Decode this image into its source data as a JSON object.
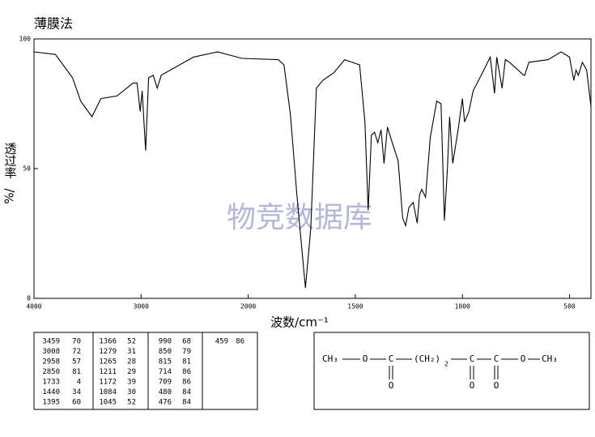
{
  "chart_data": {
    "type": "line",
    "title": "薄膜法",
    "y_label": "透过率",
    "y_label_unit": "%/",
    "x_label": "波数/cm⁻¹",
    "watermark": "物竞数据库",
    "xlim": [
      4000,
      400
    ],
    "x_scale_break": 2000,
    "xticks": [
      4000,
      3000,
      2000,
      1500,
      1000,
      500
    ],
    "ylim": [
      0,
      100
    ],
    "yticks": [
      0,
      50,
      100
    ],
    "color": "#000000",
    "x": [
      4000,
      3800,
      3640,
      3564,
      3459,
      3376,
      3226,
      3075,
      3038,
      3008,
      2990,
      2958,
      2930,
      2887,
      2850,
      2812,
      2511,
      2285,
      2060,
      1860,
      1833,
      1803,
      1773,
      1733,
      1708,
      1682,
      1652,
      1600,
      1550,
      1480,
      1455,
      1440,
      1425,
      1410,
      1395,
      1380,
      1366,
      1350,
      1320,
      1300,
      1279,
      1265,
      1250,
      1230,
      1211,
      1200,
      1190,
      1172,
      1150,
      1120,
      1100,
      1084,
      1070,
      1060,
      1045,
      1020,
      1000,
      990,
      970,
      950,
      900,
      870,
      850,
      840,
      815,
      800,
      780,
      714,
      709,
      690,
      600,
      540,
      500,
      480,
      470,
      459,
      440,
      420,
      400
    ],
    "values": [
      95,
      94,
      85,
      76,
      70,
      77,
      78,
      83,
      83,
      72,
      80,
      57,
      85,
      86,
      81,
      86,
      93,
      95,
      92.5,
      92,
      90,
      71,
      40,
      4,
      27,
      81,
      84,
      87,
      92,
      90,
      68,
      34,
      63,
      64,
      60,
      65,
      52,
      66,
      58,
      53,
      31,
      28,
      35,
      37,
      29,
      40,
      42,
      39,
      62,
      76,
      75,
      30,
      50,
      70,
      52,
      65,
      77,
      68,
      72,
      80,
      88,
      93,
      79,
      93,
      81,
      92,
      91,
      86,
      86,
      91,
      92,
      95,
      93,
      84,
      88,
      86,
      91,
      88,
      74
    ]
  },
  "peak_table": [
    [
      [
        3459,
        70
      ],
      [
        3008,
        72
      ],
      [
        2958,
        57
      ],
      [
        2850,
        81
      ],
      [
        1733,
        4
      ],
      [
        1440,
        34
      ],
      [
        1395,
        60
      ]
    ],
    [
      [
        1366,
        52
      ],
      [
        1279,
        31
      ],
      [
        1265,
        28
      ],
      [
        1211,
        29
      ],
      [
        1172,
        39
      ],
      [
        1084,
        30
      ],
      [
        1045,
        52
      ]
    ],
    [
      [
        990,
        68
      ],
      [
        850,
        79
      ],
      [
        815,
        81
      ],
      [
        714,
        86
      ],
      [
        709,
        86
      ],
      [
        480,
        84
      ],
      [
        476,
        84
      ]
    ],
    [
      [
        459,
        86
      ]
    ]
  ],
  "structure": {
    "atoms": [
      "CH₃",
      "O",
      "C",
      "(CH₂)",
      "2",
      "C",
      "C",
      "O",
      "CH₃",
      "O",
      "O",
      "O"
    ]
  }
}
